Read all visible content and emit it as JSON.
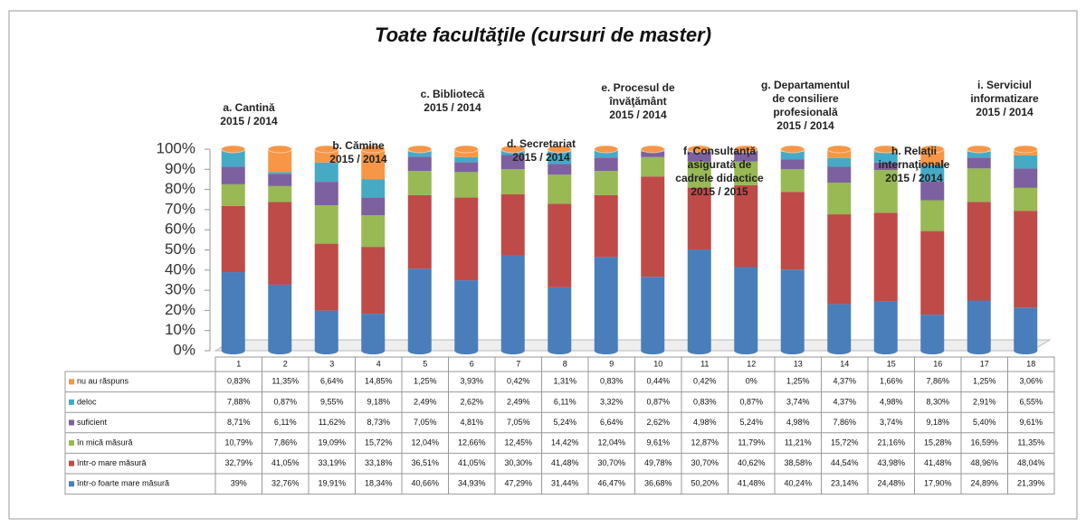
{
  "chart_data": {
    "type": "bar",
    "stacked": true,
    "title": "Toate facultăţile (cursuri de master)",
    "categories": [
      "1",
      "2",
      "3",
      "4",
      "5",
      "6",
      "7",
      "8",
      "9",
      "10",
      "11",
      "12",
      "13",
      "14",
      "15",
      "16",
      "17",
      "18"
    ],
    "ylim": [
      0,
      100
    ],
    "yticks": [
      {
        "value": 0,
        "label": "0%"
      },
      {
        "value": 10,
        "label": "10%"
      },
      {
        "value": 20,
        "label": "20%"
      },
      {
        "value": 30,
        "label": "30%"
      },
      {
        "value": 40,
        "label": "40%"
      },
      {
        "value": 50,
        "label": "50%"
      },
      {
        "value": 60,
        "label": "60%"
      },
      {
        "value": 70,
        "label": "70%"
      },
      {
        "value": 80,
        "label": "80%"
      },
      {
        "value": 90,
        "label": "90%"
      },
      {
        "value": 100,
        "label": "100%"
      }
    ],
    "series": [
      {
        "name": "într-o foarte mare măsură",
        "color": "#4a7ebb",
        "values": [
          39,
          32.76,
          19.91,
          18.34,
          40.66,
          34.93,
          47.29,
          31.44,
          46.47,
          36.68,
          50.2,
          41.48,
          40.24,
          23.14,
          24.48,
          17.9,
          24.89,
          21.39
        ],
        "value_labels": [
          "39%",
          "32,76%",
          "19,91%",
          "18,34%",
          "40,66%",
          "34,93%",
          "47,29%",
          "31,44%",
          "46,47%",
          "36,68%",
          "50,20%",
          "41,48%",
          "40,24%",
          "23,14%",
          "24,48%",
          "17,90%",
          "24,89%",
          "21,39%"
        ]
      },
      {
        "name": "într-o mare măsură",
        "color": "#be4b48",
        "values": [
          32.79,
          41.05,
          33.19,
          33.18,
          36.51,
          41.05,
          30.3,
          41.48,
          30.7,
          49.78,
          30.7,
          40.62,
          38.58,
          44.54,
          43.98,
          41.48,
          48.96,
          48.04
        ],
        "value_labels": [
          "32,79%",
          "41,05%",
          "33,19%",
          "33,18%",
          "36,51%",
          "41,05%",
          "30,30%",
          "41,48%",
          "30,70%",
          "49,78%",
          "30,70%",
          "40,62%",
          "38,58%",
          "44,54%",
          "43,98%",
          "41,48%",
          "48,96%",
          "48,04%"
        ]
      },
      {
        "name": "în mică măsură",
        "color": "#98b954",
        "values": [
          10.79,
          7.86,
          19.09,
          15.72,
          12.04,
          12.66,
          12.45,
          14.42,
          12.04,
          9.61,
          12.87,
          11.79,
          11.21,
          15.72,
          21.16,
          15.28,
          16.59,
          11.35
        ],
        "value_labels": [
          "10,79%",
          "7,86%",
          "19,09%",
          "15,72%",
          "12,04%",
          "12,66%",
          "12,45%",
          "14,42%",
          "12,04%",
          "9,61%",
          "12,87%",
          "11,79%",
          "11,21%",
          "15,72%",
          "21,16%",
          "15,28%",
          "16,59%",
          "11,35%"
        ]
      },
      {
        "name": "suficient",
        "color": "#7d60a0",
        "values": [
          8.71,
          6.11,
          11.62,
          8.73,
          7.05,
          4.81,
          7.05,
          5.24,
          6.64,
          2.62,
          4.98,
          5.24,
          4.98,
          7.86,
          3.74,
          9.18,
          5.4,
          9.61
        ],
        "value_labels": [
          "8,71%",
          "6,11%",
          "11,62%",
          "8,73%",
          "7,05%",
          "4,81%",
          "7,05%",
          "5,24%",
          "6,64%",
          "2,62%",
          "4,98%",
          "5,24%",
          "4,98%",
          "7,86%",
          "3,74%",
          "9,18%",
          "5,40%",
          "9,61%"
        ]
      },
      {
        "name": "deloc",
        "color": "#46aac5",
        "values": [
          7.88,
          0.87,
          9.55,
          9.18,
          2.49,
          2.62,
          2.49,
          6.11,
          3.32,
          0.87,
          0.83,
          0.87,
          3.74,
          4.37,
          4.98,
          8.3,
          2.91,
          6.55
        ],
        "value_labels": [
          "7,88%",
          "0,87%",
          "9,55%",
          "9,18%",
          "2,49%",
          "2,62%",
          "2,49%",
          "6,11%",
          "3,32%",
          "0,87%",
          "0,83%",
          "0,87%",
          "3,74%",
          "4,37%",
          "4,98%",
          "8,30%",
          "2,91%",
          "6,55%"
        ]
      },
      {
        "name": "nu au răspuns",
        "color": "#f79646",
        "values": [
          0.83,
          11.35,
          6.64,
          14.85,
          1.25,
          3.93,
          0.42,
          1.31,
          0.83,
          0.44,
          0.42,
          0,
          1.25,
          4.37,
          1.66,
          7.86,
          1.25,
          3.06
        ],
        "value_labels": [
          "0,83%",
          "11,35%",
          "6,64%",
          "14,85%",
          "1,25%",
          "3,93%",
          "0,42%",
          "1,31%",
          "0,83%",
          "0,44%",
          "0,42%",
          "0%",
          "1,25%",
          "4,37%",
          "1,66%",
          "7,86%",
          "1,25%",
          "3,06%"
        ]
      }
    ],
    "annotations": [
      {
        "lines": [
          "a. Cantină",
          "2015 / 2014"
        ]
      },
      {
        "lines": [
          "b. Cămine",
          "2015 / 2014"
        ]
      },
      {
        "lines": [
          "c. Bibliotecă",
          "2015 / 2014"
        ]
      },
      {
        "lines": [
          "d. Secretariat",
          "2015 / 2014"
        ]
      },
      {
        "lines": [
          "e. Procesul de",
          "învăţământ",
          "2015 / 2014"
        ]
      },
      {
        "lines": [
          "f. Consultanţă",
          "asigurată de",
          "cadrele didactice",
          "2015 / 2015"
        ]
      },
      {
        "lines": [
          "g. Departamentul",
          "de consiliere",
          "profesională",
          "2015 / 2014"
        ]
      },
      {
        "lines": [
          "h. Relaţii",
          "internaţionale",
          "2015 / 2014"
        ]
      },
      {
        "lines": [
          "i. Serviciul",
          "informatizare",
          "2015 / 2014"
        ]
      }
    ]
  }
}
